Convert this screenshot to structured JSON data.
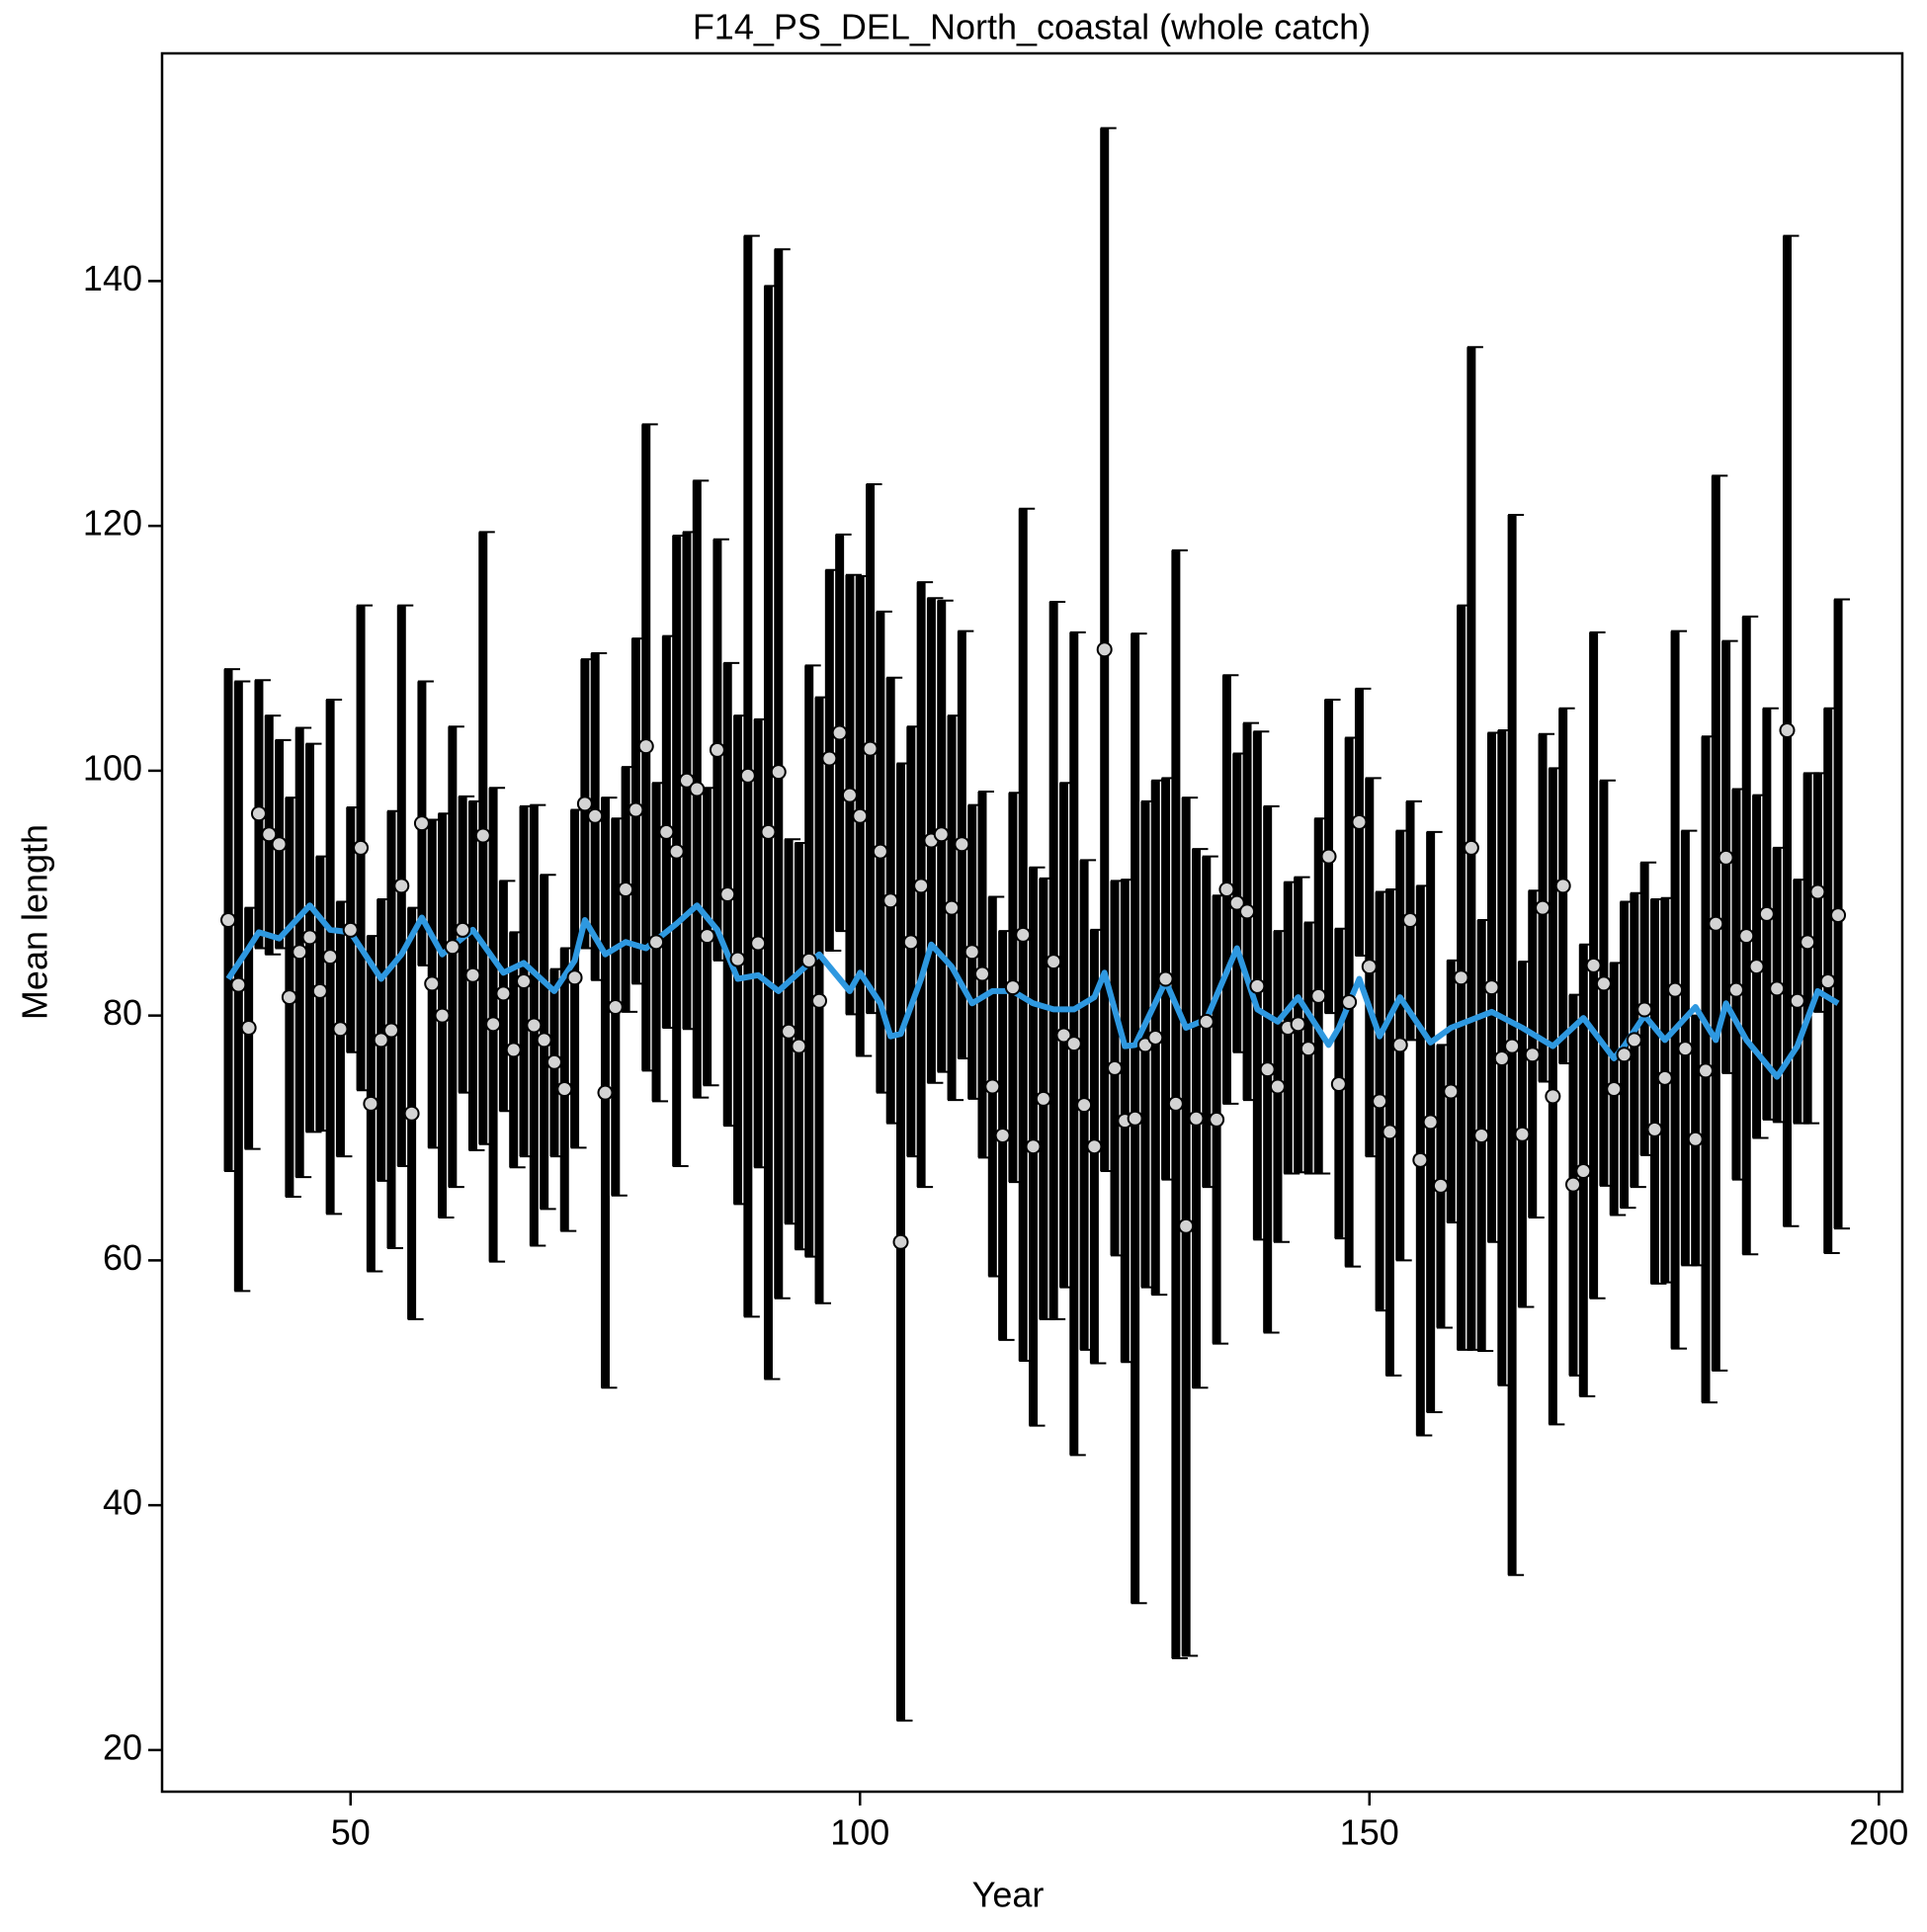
{
  "chart_data": {
    "type": "errorbar",
    "title": "F14_PS_DEL_North_coastal (whole catch)",
    "x_label": "Year",
    "y_label": "Mean length",
    "xlim": [
      31.5,
      202.3
    ],
    "ylim": [
      16.6,
      158.6
    ],
    "xticks": [
      50,
      100,
      150,
      200
    ],
    "yticks": [
      20,
      40,
      60,
      80,
      100,
      120,
      140
    ],
    "point_color": "#d3d3d3",
    "bar_color": "#000000",
    "x": [
      38,
      39,
      40,
      41,
      42,
      43,
      44,
      45,
      46,
      47,
      48,
      49,
      50,
      51,
      52,
      53,
      54,
      55,
      56,
      57,
      58,
      59,
      60,
      61,
      62,
      63,
      64,
      65,
      66,
      67,
      68,
      69,
      70,
      71,
      72,
      73,
      74,
      75,
      76,
      77,
      78,
      79,
      80,
      81,
      82,
      83,
      84,
      85,
      86,
      87,
      88,
      89,
      90,
      91,
      92,
      93,
      94,
      95,
      96,
      97,
      98,
      99,
      100,
      101,
      102,
      103,
      104,
      105,
      106,
      107,
      108,
      109,
      110,
      111,
      112,
      113,
      114,
      115,
      116,
      117,
      118,
      119,
      120,
      121,
      122,
      123,
      124,
      125,
      126,
      127,
      128,
      129,
      130,
      131,
      132,
      133,
      134,
      135,
      136,
      137,
      138,
      139,
      140,
      141,
      142,
      143,
      144,
      145,
      146,
      147,
      148,
      149,
      150,
      151,
      152,
      153,
      154,
      155,
      156,
      157,
      158,
      159,
      160,
      161,
      162,
      163,
      164,
      165,
      166,
      167,
      168,
      169,
      170,
      171,
      172,
      173,
      174,
      175,
      176,
      177,
      178,
      179,
      180,
      181,
      182,
      183,
      184,
      185,
      186,
      187,
      188,
      189,
      190,
      191,
      192,
      193,
      194,
      195,
      196
    ],
    "values": [
      87.8,
      82.5,
      79,
      96.5,
      94.8,
      94,
      81.5,
      85.2,
      86.4,
      82,
      84.8,
      78.9,
      87,
      93.7,
      72.8,
      78,
      78.8,
      90.6,
      72,
      95.7,
      82.6,
      80,
      85.6,
      87,
      83.3,
      94.7,
      79.3,
      81.8,
      77.2,
      82.8,
      79.2,
      78,
      76.2,
      74,
      83.1,
      97.3,
      96.3,
      73.7,
      80.7,
      90.3,
      96.8,
      102,
      86,
      95,
      93.4,
      99.2,
      98.5,
      86.5,
      101.7,
      89.9,
      84.6,
      99.6,
      85.9,
      95,
      99.9,
      78.7,
      77.5,
      84.5,
      81.2,
      101,
      103.1,
      98,
      96.3,
      101.8,
      93.4,
      89.4,
      61.5,
      86,
      90.6,
      94.3,
      94.8,
      88.8,
      94,
      85.2,
      83.4,
      74.2,
      70.2,
      82.3,
      86.6,
      69.3,
      73.2,
      84.4,
      78.4,
      77.7,
      72.7,
      69.3,
      109.9,
      75.7,
      71.4,
      71.6,
      77.6,
      78.2,
      83,
      72.8,
      62.8,
      71.6,
      79.5,
      71.5,
      90.3,
      89.2,
      88.5,
      82.4,
      75.6,
      74.2,
      79,
      79.3,
      77.3,
      81.6,
      93,
      74.4,
      81.1,
      95.8,
      84,
      73,
      70.5,
      77.6,
      87.8,
      68.2,
      71.3,
      66.1,
      73.8,
      83.1,
      93.7,
      70.2,
      82.3,
      76.5,
      77.5,
      70.3,
      76.8,
      88.8,
      73.4,
      90.6,
      66.2,
      67.3,
      84.1,
      82.6,
      74,
      76.8,
      78,
      80.5,
      70.7,
      74.9,
      82.1,
      77.3,
      69.9,
      75.5,
      87.5,
      92.9,
      82.1,
      86.5,
      84,
      88.3,
      82.2,
      103.3,
      81.2,
      86,
      90.1,
      82.8,
      88.2
    ],
    "lower": [
      67.3,
      57.5,
      69.1,
      85.5,
      85,
      85.5,
      65.2,
      66.8,
      70.5,
      70.6,
      63.8,
      68.5,
      77,
      73.9,
      59.1,
      66.5,
      61,
      67.7,
      55.2,
      84.1,
      69.2,
      63.5,
      66,
      73.7,
      69,
      69.5,
      59.9,
      72.2,
      67.6,
      68.5,
      61.2,
      64.2,
      68.5,
      62.4,
      69.2,
      85.5,
      82.9,
      49.6,
      65.3,
      80.3,
      82.6,
      75.5,
      73,
      79,
      67.7,
      78.9,
      73.3,
      74.3,
      84.5,
      71,
      64.6,
      55.4,
      67.6,
      50.3,
      56.9,
      63,
      60.9,
      60.3,
      56.5,
      85.3,
      86.9,
      80.1,
      76.7,
      80.2,
      73.7,
      71.2,
      22.4,
      68.5,
      66,
      74.5,
      75.4,
      73.1,
      76.5,
      73.2,
      68.4,
      58.7,
      53.5,
      66.4,
      51.8,
      46.5,
      55.2,
      55.2,
      57.8,
      44.1,
      52.7,
      51.6,
      67.3,
      60.4,
      51.7,
      32,
      57.8,
      57.2,
      66.6,
      27.5,
      27.7,
      49.6,
      66,
      53.2,
      72.8,
      77,
      73.1,
      61.7,
      54.1,
      61.5,
      67.1,
      67.2,
      67.1,
      67.1,
      80.2,
      61.8,
      59.5,
      84.9,
      68.5,
      55.9,
      50.6,
      60,
      78,
      45.7,
      47.6,
      54.5,
      63.1,
      52.7,
      52.7,
      52.6,
      61.5,
      49.8,
      34.3,
      56.2,
      63.5,
      74.6,
      46.6,
      76.1,
      50.6,
      48.9,
      56.9,
      66.1,
      63.7,
      64.3,
      66,
      68.6,
      58.1,
      58.2,
      52.8,
      59.6,
      59.6,
      48.4,
      51,
      75.3,
      66.6,
      60.5,
      70,
      71.5,
      71.3,
      62.8,
      71.2,
      71.2,
      80.3,
      60.6,
      62.6
    ],
    "upper": [
      108.3,
      107.3,
      88.8,
      107.4,
      104.5,
      102.5,
      97.8,
      103.5,
      102.2,
      93,
      105.8,
      89.3,
      97,
      113.5,
      86.5,
      89.5,
      96.7,
      113.5,
      88.8,
      107.3,
      96,
      96.5,
      103.6,
      97.9,
      97.5,
      119.5,
      98.6,
      91,
      86.8,
      97.1,
      97.2,
      91.5,
      83.8,
      85.5,
      96.8,
      109.1,
      109.6,
      97.8,
      96.1,
      100.3,
      110.8,
      128.3,
      99,
      111,
      119.2,
      119.5,
      123.7,
      98.6,
      118.9,
      108.8,
      104.5,
      143.7,
      104.2,
      139.6,
      142.6,
      94.4,
      94.1,
      108.6,
      106,
      116.4,
      119.3,
      116,
      115.9,
      123.4,
      113,
      107.6,
      100.6,
      103.6,
      115.4,
      114.1,
      113.9,
      104.5,
      111.4,
      97.2,
      98.3,
      89.7,
      86.9,
      98.2,
      121.4,
      92.1,
      91.2,
      113.8,
      99,
      111.3,
      92.7,
      87,
      152.5,
      91,
      91.1,
      111.2,
      97.5,
      99.2,
      99.4,
      118,
      97.8,
      93.6,
      93,
      89.8,
      107.8,
      101.4,
      103.9,
      103.2,
      97.1,
      86.9,
      90.9,
      91.3,
      87.6,
      96.1,
      105.8,
      87.1,
      102.7,
      106.7,
      99.4,
      90.1,
      90.3,
      95.1,
      97.5,
      90.6,
      95,
      77.6,
      84.5,
      113.5,
      134.6,
      87.8,
      103.1,
      103.3,
      120.9,
      84.4,
      90.2,
      103,
      100.2,
      105.1,
      81.7,
      85.8,
      111.3,
      99.2,
      84.3,
      89.3,
      90,
      92.5,
      89.5,
      89.6,
      111.4,
      95.1,
      80,
      102.8,
      124.1,
      110.6,
      98.5,
      112.6,
      98,
      105.1,
      93.7,
      143.7,
      91.1,
      99.8,
      99.8,
      105.1,
      114
    ],
    "smooth": {
      "color": "#2e98e0",
      "x": [
        38,
        40,
        41,
        43,
        46,
        48,
        50,
        53,
        55,
        57,
        59,
        62,
        65,
        67,
        70,
        72,
        73,
        75,
        77,
        79,
        82,
        84,
        86,
        88,
        90,
        92,
        94,
        96,
        99,
        100,
        102,
        103,
        104,
        106,
        107,
        109,
        111,
        113,
        115,
        117,
        119,
        121,
        123,
        124,
        126,
        127,
        130,
        132,
        134,
        137,
        139,
        141,
        143,
        146,
        147,
        149,
        151,
        153,
        156,
        158,
        162,
        165,
        168,
        171,
        174,
        175,
        177,
        179,
        182,
        184,
        185,
        187,
        190,
        192,
        194,
        196
      ],
      "values": [
        83,
        85.5,
        86.8,
        86.3,
        89,
        87,
        86.8,
        83,
        85,
        88,
        85,
        87,
        83.5,
        84.3,
        82,
        84.5,
        87.8,
        85,
        86,
        85.5,
        87.5,
        89,
        87,
        83,
        83.3,
        82,
        83.5,
        85,
        82,
        83.5,
        81,
        78.3,
        78.5,
        83,
        85.8,
        84,
        81,
        82,
        82,
        81,
        80.5,
        80.5,
        81.5,
        83.5,
        77.5,
        77.6,
        82.8,
        79,
        79.7,
        85.5,
        80.5,
        79.5,
        81.5,
        77.6,
        79,
        83,
        78.3,
        81.5,
        77.8,
        79,
        80.3,
        79,
        77.5,
        79.8,
        76.5,
        77.5,
        80,
        78,
        80.7,
        78,
        81,
        78,
        75,
        77.5,
        82,
        81
      ]
    }
  }
}
